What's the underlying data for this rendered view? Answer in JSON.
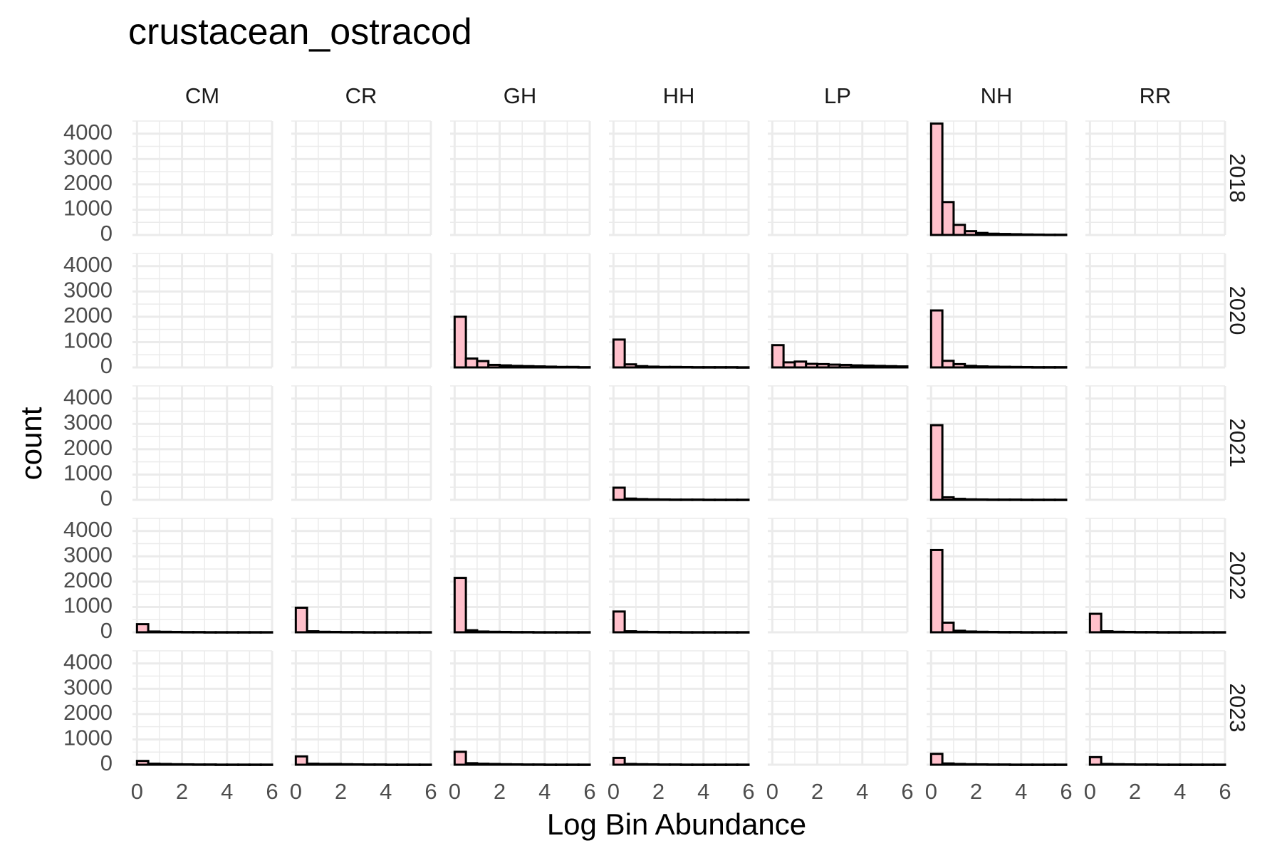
{
  "chart_data": {
    "type": "bar",
    "subtype": "faceted-histogram",
    "title": "crustacean_ostracod",
    "xlabel": "Log Bin Abundance",
    "ylabel": "count",
    "columns": [
      "CM",
      "CR",
      "GH",
      "HH",
      "LP",
      "NH",
      "RR"
    ],
    "rows": [
      "2018",
      "2020",
      "2021",
      "2022",
      "2023"
    ],
    "xlim": [
      -0.2,
      6
    ],
    "x_ticks": [
      "0",
      "2",
      "4",
      "6"
    ],
    "ylim": [
      0,
      4500
    ],
    "y_ticks": [
      "0",
      "1000",
      "2000",
      "3000",
      "4000"
    ],
    "bin_width": 0.5,
    "bin_starts": [
      0,
      0.5,
      1.0,
      1.5,
      2.0,
      2.5,
      3.0,
      3.5,
      4.0,
      4.5,
      5.0,
      5.5
    ],
    "grid": true,
    "bar_fill": "#ffc0cb",
    "bar_outline": "#000000",
    "grid_color": "#ebebeb",
    "panels": [
      {
        "row": "2018",
        "col": "NH",
        "counts": [
          4400,
          1300,
          400,
          150,
          80,
          50,
          40,
          30,
          20,
          15,
          10,
          10
        ]
      },
      {
        "row": "2020",
        "col": "GH",
        "counts": [
          2000,
          350,
          250,
          100,
          80,
          60,
          50,
          40,
          30,
          20,
          20,
          10
        ]
      },
      {
        "row": "2020",
        "col": "HH",
        "counts": [
          1100,
          120,
          50,
          30,
          20,
          20,
          15,
          10,
          10,
          10,
          10,
          5
        ]
      },
      {
        "row": "2020",
        "col": "LP",
        "counts": [
          880,
          200,
          230,
          140,
          130,
          110,
          100,
          80,
          70,
          60,
          50,
          40
        ]
      },
      {
        "row": "2020",
        "col": "NH",
        "counts": [
          2250,
          260,
          130,
          60,
          40,
          30,
          25,
          20,
          15,
          10,
          10,
          10
        ]
      },
      {
        "row": "2021",
        "col": "HH",
        "counts": [
          480,
          50,
          30,
          20,
          15,
          10,
          10,
          10,
          5,
          5,
          5,
          5
        ]
      },
      {
        "row": "2021",
        "col": "NH",
        "counts": [
          2950,
          100,
          40,
          20,
          15,
          10,
          10,
          10,
          5,
          5,
          5,
          5
        ]
      },
      {
        "row": "2022",
        "col": "CM",
        "counts": [
          320,
          30,
          20,
          15,
          10,
          10,
          5,
          5,
          5,
          5,
          5,
          5
        ]
      },
      {
        "row": "2022",
        "col": "CR",
        "counts": [
          970,
          40,
          20,
          15,
          10,
          10,
          5,
          5,
          5,
          5,
          5,
          5
        ]
      },
      {
        "row": "2022",
        "col": "GH",
        "counts": [
          2150,
          80,
          30,
          20,
          15,
          10,
          10,
          5,
          5,
          5,
          5,
          5
        ]
      },
      {
        "row": "2022",
        "col": "HH",
        "counts": [
          820,
          40,
          20,
          15,
          10,
          10,
          5,
          5,
          5,
          5,
          5,
          5
        ]
      },
      {
        "row": "2022",
        "col": "NH",
        "counts": [
          3250,
          380,
          60,
          30,
          20,
          15,
          10,
          10,
          5,
          5,
          5,
          5
        ]
      },
      {
        "row": "2022",
        "col": "RR",
        "counts": [
          730,
          40,
          20,
          15,
          10,
          10,
          5,
          5,
          5,
          5,
          5,
          5
        ]
      },
      {
        "row": "2023",
        "col": "CM",
        "counts": [
          150,
          40,
          30,
          20,
          15,
          10,
          10,
          5,
          5,
          5,
          5,
          5
        ]
      },
      {
        "row": "2023",
        "col": "CR",
        "counts": [
          330,
          40,
          30,
          30,
          20,
          15,
          10,
          10,
          5,
          5,
          5,
          5
        ]
      },
      {
        "row": "2023",
        "col": "GH",
        "counts": [
          510,
          60,
          40,
          30,
          20,
          15,
          10,
          10,
          5,
          5,
          5,
          5
        ]
      },
      {
        "row": "2023",
        "col": "HH",
        "counts": [
          270,
          30,
          20,
          15,
          10,
          10,
          5,
          5,
          5,
          5,
          5,
          5
        ]
      },
      {
        "row": "2023",
        "col": "NH",
        "counts": [
          430,
          50,
          30,
          20,
          15,
          10,
          10,
          5,
          5,
          5,
          5,
          5
        ]
      },
      {
        "row": "2023",
        "col": "RR",
        "counts": [
          300,
          30,
          20,
          15,
          10,
          10,
          5,
          5,
          5,
          5,
          5,
          5
        ]
      }
    ]
  }
}
